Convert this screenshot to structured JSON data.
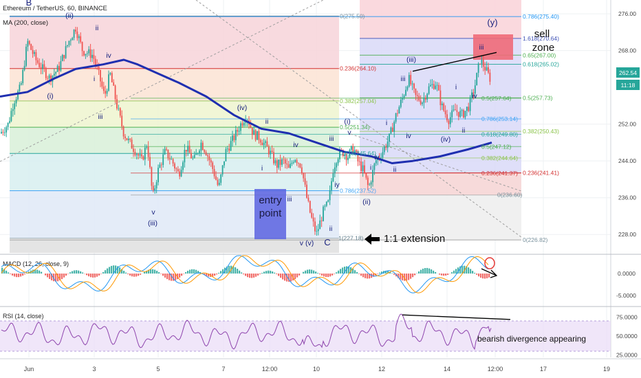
{
  "header": {
    "symbol": "Ethereum / TetherUS, 60, BINANCE",
    "ma_label": "MA (200, close)"
  },
  "colors": {
    "ma": "#1f2fb0",
    "up": "#26a69a",
    "down": "#ef5350",
    "wave": "#1a237e",
    "macd": "#2196f3",
    "signal": "#ff9800",
    "rsi": "#8e44ad",
    "rsi_band": "#e9dcf7",
    "entry_box": "#5a63e0",
    "sell_box": "#f06a78"
  },
  "price_axis": {
    "ticks": [
      "276.00",
      "268.00",
      "252.00",
      "244.00",
      "236.00",
      "228.00"
    ],
    "last_price": "262.54",
    "countdown": "11:18"
  },
  "time_axis": {
    "ticks": [
      "Jun",
      "3",
      "5",
      "7",
      "12:00",
      "10",
      "12",
      "14",
      "12:00",
      "17",
      "19"
    ]
  },
  "fib_left": {
    "levels": [
      {
        "label": "0(275.50)",
        "price": 275.5,
        "band": "#f7d4d9"
      },
      {
        "label": "0.236(264.10)",
        "price": 264.1,
        "band": "#fbe3d3"
      },
      {
        "label": "0.382(257.04)",
        "price": 257.04,
        "band": "#eef5cf"
      },
      {
        "label": "0.5(251.34)",
        "price": 251.34,
        "band": "#d8f0d8"
      },
      {
        "label": "0.618(245.64)",
        "price": 245.64,
        "band": "#d7eef0"
      },
      {
        "label": "0.786(237.52)",
        "price": 237.52,
        "band": "#dfe9f7"
      },
      {
        "label": "1(227.18)",
        "price": 227.18,
        "band": "#e8e8e8"
      }
    ]
  },
  "fib_right": {
    "levels": [
      {
        "label": "0.786(275.40)",
        "price": 275.4
      },
      {
        "label": "1.618(270.64)",
        "price": 270.64
      },
      {
        "label": "0.65(267.00)",
        "price": 267.0
      },
      {
        "label": "0.618(265.02)",
        "price": 265.02
      },
      {
        "label": "0.5(257.73)",
        "price": 257.73
      },
      {
        "label": "0.382(250.43)",
        "price": 250.43
      },
      {
        "label": "0.236(241.41)",
        "price": 241.41
      },
      {
        "label": "0(226.82)",
        "price": 226.82
      }
    ]
  },
  "fib_mid": {
    "levels": [
      {
        "label": "0.5(257.64)",
        "price": 257.64
      },
      {
        "label": "0.786(253.14)",
        "price": 253.14
      },
      {
        "label": "0.618(249.80)",
        "price": 249.8
      },
      {
        "label": "0.5(247.12)",
        "price": 247.12
      },
      {
        "label": "0.382(244.64)",
        "price": 244.64
      },
      {
        "label": "0.236(241.37)",
        "price": 241.37
      },
      {
        "label": "0(236.60)",
        "price": 236.6
      }
    ]
  },
  "annotations": {
    "entry": [
      "entry",
      "point"
    ],
    "sell": [
      "sell",
      "zone"
    ],
    "extension": "1:1 extension",
    "divergence": "bearish divergence appearing"
  },
  "wave_labels": [
    "B",
    "(ii)",
    "ii",
    "(i)",
    "i",
    "iii",
    "iv",
    "v",
    "(iii)",
    "(iv)",
    "ii",
    "iv",
    "i",
    "iii",
    "v (v)",
    "C",
    "ii",
    "iy",
    "(i)",
    "v",
    "i",
    "ii",
    "(ii)",
    "iii",
    "(iii)",
    "iv",
    "i",
    "ii",
    "(iv)",
    "iii",
    "(y)",
    "iv",
    "iii",
    "i",
    "iv"
  ],
  "macd": {
    "label": "MACD (12, 26, close, 9)",
    "ticks": [
      "0.0000",
      "-5.0000"
    ]
  },
  "rsi": {
    "label": "RSI (14, close)",
    "ticks": [
      "75.0000",
      "50.0000",
      "25.0000"
    ]
  },
  "chart_data": {
    "type": "candlestick",
    "symbol": "Ethereum / TetherUS, 60, BINANCE",
    "ylim": [
      224,
      279
    ],
    "price_path": [
      [
        0,
        250
      ],
      [
        12,
        252
      ],
      [
        20,
        257
      ],
      [
        30,
        260
      ],
      [
        40,
        270
      ],
      [
        52,
        266
      ],
      [
        62,
        264
      ],
      [
        72,
        262
      ],
      [
        85,
        264
      ],
      [
        100,
        270
      ],
      [
        110,
        273
      ],
      [
        120,
        268
      ],
      [
        135,
        267
      ],
      [
        145,
        262
      ],
      [
        152,
        258
      ],
      [
        160,
        263
      ],
      [
        170,
        256
      ],
      [
        180,
        250
      ],
      [
        188,
        248
      ],
      [
        198,
        246
      ],
      [
        206,
        244
      ],
      [
        214,
        248
      ],
      [
        222,
        236
      ],
      [
        230,
        242
      ],
      [
        240,
        246
      ],
      [
        250,
        244
      ],
      [
        260,
        241
      ],
      [
        270,
        247
      ],
      [
        282,
        244
      ],
      [
        292,
        248
      ],
      [
        300,
        246
      ],
      [
        310,
        242
      ],
      [
        318,
        238
      ],
      [
        328,
        246
      ],
      [
        340,
        249
      ],
      [
        350,
        252
      ],
      [
        358,
        254
      ],
      [
        368,
        250
      ],
      [
        378,
        249
      ],
      [
        392,
        246
      ],
      [
        402,
        243
      ],
      [
        412,
        244
      ],
      [
        420,
        242
      ],
      [
        428,
        245
      ],
      [
        438,
        243
      ],
      [
        446,
        236
      ],
      [
        452,
        232
      ],
      [
        460,
        228
      ],
      [
        470,
        233
      ],
      [
        478,
        235
      ],
      [
        484,
        242
      ],
      [
        490,
        245
      ],
      [
        498,
        246
      ],
      [
        506,
        245
      ],
      [
        514,
        247
      ],
      [
        520,
        244
      ],
      [
        528,
        242
      ],
      [
        536,
        238
      ],
      [
        546,
        244
      ],
      [
        556,
        246
      ],
      [
        566,
        249
      ],
      [
        576,
        254
      ],
      [
        586,
        258
      ],
      [
        594,
        262
      ],
      [
        604,
        258
      ],
      [
        614,
        257
      ],
      [
        624,
        260
      ],
      [
        634,
        261
      ],
      [
        642,
        256
      ],
      [
        652,
        253
      ],
      [
        662,
        255
      ],
      [
        672,
        254
      ],
      [
        682,
        256
      ],
      [
        690,
        260
      ],
      [
        698,
        266
      ],
      [
        706,
        264
      ],
      [
        712,
        262
      ]
    ],
    "ma200": [
      [
        0,
        258
      ],
      [
        40,
        259
      ],
      [
        80,
        262
      ],
      [
        110,
        264
      ],
      [
        150,
        265
      ],
      [
        180,
        266
      ],
      [
        200,
        265
      ],
      [
        230,
        263
      ],
      [
        260,
        261
      ],
      [
        300,
        258
      ],
      [
        340,
        254
      ],
      [
        380,
        251
      ],
      [
        420,
        250
      ],
      [
        460,
        248
      ],
      [
        500,
        246
      ],
      [
        540,
        245
      ],
      [
        570,
        243.5
      ],
      [
        600,
        244
      ],
      [
        640,
        245
      ],
      [
        680,
        246.5
      ],
      [
        715,
        248
      ]
    ]
  }
}
